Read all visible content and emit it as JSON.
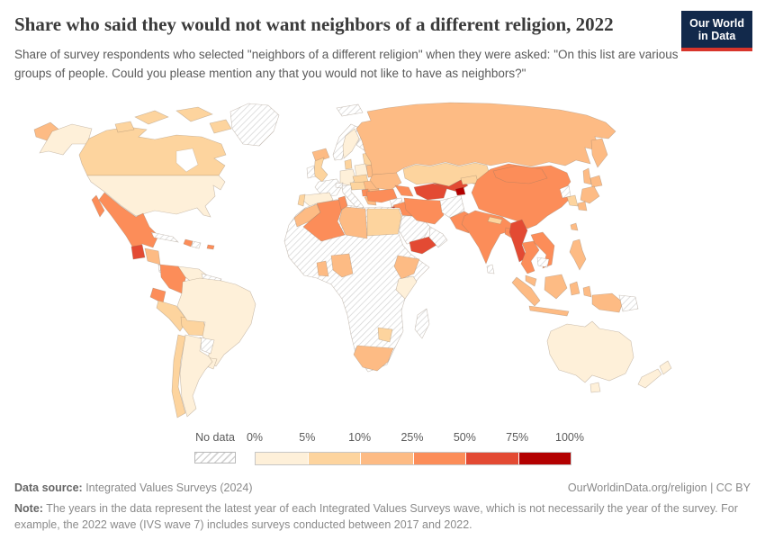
{
  "header": {
    "title": "Share who said they would not want neighbors of a different religion, 2022",
    "subtitle": "Share of survey respondents who selected \"neighbors of a different religion\" when they were asked: \"On this list are various groups of people. Could you please mention any that you would not like to have as neighbors?\"",
    "logo_line1": "Our World",
    "logo_line2": "in Data",
    "logo_bg": "#12294b",
    "logo_accent": "#d8352b"
  },
  "legend": {
    "no_data_label": "No data",
    "tick_labels": [
      "0%",
      "5%",
      "10%",
      "25%",
      "50%",
      "75%",
      "100%"
    ],
    "bin_labels": [
      "0-5%",
      "5-10%",
      "10-25%",
      "25-50%",
      "50-75%",
      "75-100%"
    ],
    "bin_colors": [
      "#fef0d9",
      "#fdd49e",
      "#fdbb84",
      "#fc8d59",
      "#e34a33",
      "#b30000"
    ]
  },
  "footer": {
    "source_label": "Data source:",
    "source_text": " Integrated Values Surveys (2024)",
    "rights": "OurWorldinData.org/religion | CC BY",
    "note_label": "Note:",
    "note_text": " The years in the data represent the latest year of each Integrated Values Surveys wave, which is not necessarily the year of the survey. For example, the 2022 wave (IVS wave 7) includes surveys conducted between 2017 and 2022."
  },
  "chart_data": {
    "type": "choropleth-map",
    "title": "Share who said they would not want neighbors of a different religion, 2022",
    "legend_bins": [
      "0-5%",
      "5-10%",
      "10-25%",
      "25-50%",
      "50-75%",
      "75-100%",
      "No data"
    ],
    "note": "bin is an index into legend.bin_colors; 'no-data' = hatched; 'water' = inland sea"
  },
  "map": {
    "countries": [
      {
        "id": "usa",
        "name": "United States",
        "bin": 0
      },
      {
        "id": "canada",
        "name": "Canada",
        "bin": 1
      },
      {
        "id": "greenland",
        "name": "Greenland",
        "bin": "no-data"
      },
      {
        "id": "hudson_bay",
        "name": "Hudson Bay",
        "bin": "water"
      },
      {
        "id": "mexico",
        "name": "Mexico",
        "bin": 3
      },
      {
        "id": "guatemala",
        "name": "Guatemala",
        "bin": 4
      },
      {
        "id": "honduras_nicaragua",
        "name": "Honduras / Nicaragua",
        "bin": 2
      },
      {
        "id": "costa_rica_panama",
        "name": "Costa Rica / Panama",
        "bin": "no-data"
      },
      {
        "id": "cuba",
        "name": "Cuba",
        "bin": "no-data"
      },
      {
        "id": "haiti",
        "name": "Haiti",
        "bin": 3
      },
      {
        "id": "dominican_republic",
        "name": "Dominican Republic",
        "bin": "no-data"
      },
      {
        "id": "puerto_rico",
        "name": "Puerto Rico",
        "bin": 3
      },
      {
        "id": "colombia",
        "name": "Colombia",
        "bin": 3
      },
      {
        "id": "venezuela",
        "name": "Venezuela",
        "bin": 0
      },
      {
        "id": "guianas",
        "name": "Guyana / Suriname",
        "bin": "no-data"
      },
      {
        "id": "ecuador",
        "name": "Ecuador",
        "bin": 3
      },
      {
        "id": "peru",
        "name": "Peru",
        "bin": 1
      },
      {
        "id": "bolivia",
        "name": "Bolivia",
        "bin": 1
      },
      {
        "id": "brazil",
        "name": "Brazil",
        "bin": 0
      },
      {
        "id": "paraguay",
        "name": "Paraguay",
        "bin": "no-data"
      },
      {
        "id": "uruguay",
        "name": "Uruguay",
        "bin": 0
      },
      {
        "id": "argentina",
        "name": "Argentina",
        "bin": 0
      },
      {
        "id": "chile",
        "name": "Chile",
        "bin": 1
      },
      {
        "id": "iceland",
        "name": "Iceland",
        "bin": 2
      },
      {
        "id": "svalbard",
        "name": "Svalbard",
        "bin": "no-data"
      },
      {
        "id": "norway",
        "name": "Norway",
        "bin": "no-data"
      },
      {
        "id": "sweden",
        "name": "Sweden",
        "bin": 0
      },
      {
        "id": "finland",
        "name": "Finland",
        "bin": "no-data"
      },
      {
        "id": "baltics",
        "name": "Baltic states",
        "bin": 1
      },
      {
        "id": "uk",
        "name": "United Kingdom",
        "bin": 1
      },
      {
        "id": "ireland",
        "name": "Ireland",
        "bin": "no-data"
      },
      {
        "id": "denmark",
        "name": "Denmark",
        "bin": 1
      },
      {
        "id": "germany",
        "name": "Germany",
        "bin": 0
      },
      {
        "id": "france",
        "name": "France",
        "bin": "no-data"
      },
      {
        "id": "spain",
        "name": "Spain",
        "bin": 0
      },
      {
        "id": "portugal",
        "name": "Portugal",
        "bin": 1
      },
      {
        "id": "italy",
        "name": "Italy",
        "bin": "no-data"
      },
      {
        "id": "switzerland",
        "name": "Switzerland",
        "bin": "no-data"
      },
      {
        "id": "poland",
        "name": "Poland",
        "bin": 0
      },
      {
        "id": "czech_slovakia",
        "name": "Czechia / Slovakia",
        "bin": 1
      },
      {
        "id": "hungary_austria",
        "name": "Austria / Hungary",
        "bin": 1
      },
      {
        "id": "romania",
        "name": "Romania",
        "bin": 2
      },
      {
        "id": "serbia",
        "name": "Serbia",
        "bin": 3
      },
      {
        "id": "bulgaria",
        "name": "Bulgaria",
        "bin": 2
      },
      {
        "id": "greece",
        "name": "Greece",
        "bin": 2
      },
      {
        "id": "belarus",
        "name": "Belarus",
        "bin": 2
      },
      {
        "id": "ukraine",
        "name": "Ukraine",
        "bin": 2
      },
      {
        "id": "russia",
        "name": "Russia",
        "bin": 2
      },
      {
        "id": "kazakhstan",
        "name": "Kazakhstan",
        "bin": 1
      },
      {
        "id": "caucasus",
        "name": "Armenia / Azerbaijan / Georgia",
        "bin": 3
      },
      {
        "id": "turkey",
        "name": "Turkey",
        "bin": 3
      },
      {
        "id": "cyprus",
        "name": "Cyprus",
        "bin": 2
      },
      {
        "id": "syria",
        "name": "Syria",
        "bin": "no-data"
      },
      {
        "id": "jordan_israel",
        "name": "Jordan / Israel",
        "bin": 5
      },
      {
        "id": "iraq",
        "name": "Iraq",
        "bin": 3
      },
      {
        "id": "saudi_arabia",
        "name": "Saudi Arabia",
        "bin": "no-data"
      },
      {
        "id": "yemen",
        "name": "Yemen",
        "bin": 4
      },
      {
        "id": "oman_uae",
        "name": "Oman / UAE",
        "bin": "no-data"
      },
      {
        "id": "iran",
        "name": "Iran",
        "bin": 3
      },
      {
        "id": "afghanistan",
        "name": "Afghanistan",
        "bin": "no-data"
      },
      {
        "id": "pakistan",
        "name": "Pakistan",
        "bin": 3
      },
      {
        "id": "turkmenistan",
        "name": "Turkmenistan",
        "bin": 4
      },
      {
        "id": "uzbekistan",
        "name": "Uzbekistan",
        "bin": 4
      },
      {
        "id": "tajikistan",
        "name": "Tajikistan",
        "bin": 5
      },
      {
        "id": "kyrgyzstan",
        "name": "Kyrgyzstan",
        "bin": 1
      },
      {
        "id": "africa_nodata",
        "name": "Africa (no-data region)",
        "bin": "no-data"
      },
      {
        "id": "morocco",
        "name": "Morocco",
        "bin": 2
      },
      {
        "id": "algeria",
        "name": "Algeria",
        "bin": 3
      },
      {
        "id": "tunisia",
        "name": "Tunisia",
        "bin": 3
      },
      {
        "id": "libya",
        "name": "Libya",
        "bin": 2
      },
      {
        "id": "egypt",
        "name": "Egypt",
        "bin": 1
      },
      {
        "id": "ghana",
        "name": "Ghana",
        "bin": 2
      },
      {
        "id": "nigeria",
        "name": "Nigeria",
        "bin": 2
      },
      {
        "id": "ethiopia",
        "name": "Ethiopia",
        "bin": 2
      },
      {
        "id": "kenya",
        "name": "Kenya",
        "bin": 0
      },
      {
        "id": "zimbabwe",
        "name": "Zimbabwe",
        "bin": 1
      },
      {
        "id": "south_africa",
        "name": "South Africa",
        "bin": 2
      },
      {
        "id": "madagascar",
        "name": "Madagascar",
        "bin": "no-data"
      },
      {
        "id": "india",
        "name": "India",
        "bin": 3
      },
      {
        "id": "nepal",
        "name": "Nepal",
        "bin": 1
      },
      {
        "id": "bangladesh",
        "name": "Bangladesh",
        "bin": 3
      },
      {
        "id": "sri_lanka",
        "name": "Sri Lanka",
        "bin": "no-data"
      },
      {
        "id": "china",
        "name": "China",
        "bin": 3
      },
      {
        "id": "mongolia",
        "name": "Mongolia",
        "bin": 3
      },
      {
        "id": "north_korea",
        "name": "North Korea",
        "bin": "no-data"
      },
      {
        "id": "south_korea",
        "name": "South Korea",
        "bin": 1
      },
      {
        "id": "japan",
        "name": "Japan",
        "bin": 2
      },
      {
        "id": "taiwan",
        "name": "Taiwan",
        "bin": 2
      },
      {
        "id": "myanmar",
        "name": "Myanmar",
        "bin": 4
      },
      {
        "id": "thailand",
        "name": "Thailand",
        "bin": 3
      },
      {
        "id": "laos_vietnam",
        "name": "Laos / Vietnam",
        "bin": 3
      },
      {
        "id": "cambodia",
        "name": "Cambodia",
        "bin": "no-data"
      },
      {
        "id": "philippines",
        "name": "Philippines",
        "bin": 2
      },
      {
        "id": "malaysia",
        "name": "Malaysia",
        "bin": 2
      },
      {
        "id": "indonesia",
        "name": "Indonesia",
        "bin": 2
      },
      {
        "id": "papua_new_guinea",
        "name": "Papua New Guinea",
        "bin": "no-data"
      },
      {
        "id": "australia",
        "name": "Australia",
        "bin": 0
      },
      {
        "id": "new_zealand",
        "name": "New Zealand",
        "bin": 0
      }
    ]
  }
}
